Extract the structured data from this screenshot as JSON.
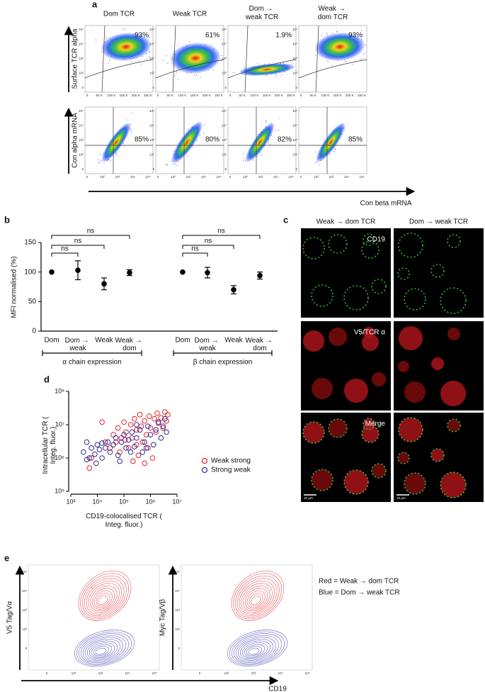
{
  "panel_labels": [
    "a",
    "b",
    "c",
    "d",
    "e"
  ],
  "panel_a": {
    "columns": [
      "Dom TCR",
      "Weak TCR",
      "Dom → weak TCR",
      "Weak → dom TCR"
    ],
    "row_ylabels": [
      "Surface TCR alpha",
      "Con alpha mRNA"
    ],
    "xlabel": "Con beta mRNA",
    "percentages": [
      [
        "93%",
        "61%",
        "1.9%",
        "93%"
      ],
      [
        "85%",
        "80%",
        "82%",
        "85%"
      ]
    ],
    "row_xticks": [
      [
        "0",
        "50 K",
        "100 K",
        "150 K",
        "200 K",
        "250 K"
      ],
      [
        "0",
        "10²",
        "10³",
        "10⁴",
        "10⁵"
      ]
    ],
    "yticks": [
      "0",
      "10²",
      "10³",
      "10⁴",
      "10⁵"
    ]
  },
  "panel_c": {
    "columns": [
      "Weak → dom TCR",
      "Dom → weak TCR"
    ],
    "rows": [
      "CD19",
      "V5/TCR α",
      "Merge"
    ],
    "scale_bar": "10 µm"
  },
  "panel_e": {
    "ylabels": [
      "V5 Tag/Vα",
      "Myc Tag/Vβ"
    ],
    "xlabel": "CD19",
    "legend": [
      "Red = Weak → dom TCR",
      "Blue = Dom → weak TCR"
    ],
    "xticks": [
      "0",
      "10²",
      "10³",
      "10⁴",
      "10⁵"
    ],
    "yticks": [
      "0",
      "10²",
      "10³",
      "10⁴",
      "10⁵"
    ]
  },
  "chart_data": [
    {
      "type": "dot",
      "ylabel": "MFI normalised (%)",
      "ylim": [
        0,
        150
      ],
      "yticks": [
        0,
        50,
        100,
        150
      ],
      "color": "#000000",
      "groups": [
        {
          "name": "α chain expression",
          "categories": [
            "Dom",
            "Dom → weak",
            "Weak",
            "Weak → dom"
          ],
          "values": [
            100,
            103,
            80,
            99
          ],
          "errors": [
            0,
            16,
            10,
            5
          ],
          "significance": [
            "ns",
            "ns",
            "ns"
          ]
        },
        {
          "name": "β chain expression",
          "categories": [
            "Dom",
            "Dom → weak",
            "Weak",
            "Weak → dom"
          ],
          "values": [
            100,
            99,
            70,
            94
          ],
          "errors": [
            0,
            9,
            7,
            6
          ],
          "significance": [
            "ns",
            "ns",
            "ns"
          ]
        }
      ]
    },
    {
      "type": "scatter",
      "xlabel": "CD19-colocalised TCR (Integ. fluor.)",
      "ylabel": "Intracellular TCR (Integ. fluor.)",
      "log": true,
      "xlim": [
        1000.0,
        10000000.0
      ],
      "ylim": [
        100000.0,
        100000000.0
      ],
      "xticks": [
        {
          "value": 1000.0,
          "label": "10³"
        },
        {
          "value": 10000.0,
          "label": "10⁴"
        },
        {
          "value": 100000.0,
          "label": "10⁵"
        },
        {
          "value": 1000000.0,
          "label": "10⁶"
        },
        {
          "value": 10000000.0,
          "label": "10⁷"
        }
      ],
      "yticks": [
        {
          "value": 100000.0,
          "label": "10⁵"
        },
        {
          "value": 1000000.0,
          "label": "10⁶"
        },
        {
          "value": 10000000.0,
          "label": "10⁷"
        },
        {
          "value": 100000000.0,
          "label": "10⁸"
        }
      ],
      "series": [
        {
          "name": "Weak strong",
          "color": "#e8202a",
          "x": [
            5000.0,
            6000.0,
            15000.0,
            20000.0,
            30000.0,
            40000.0,
            50000.0,
            60000.0,
            80000.0,
            100000.0,
            120000.0,
            150000.0,
            180000.0,
            200000.0,
            250000.0,
            300000.0,
            350000.0,
            400000.0,
            450000.0,
            500000.0,
            600000.0,
            700000.0,
            800000.0,
            900000.0,
            1000000.0,
            1200000.0,
            1400000.0,
            1600000.0,
            1800000.0,
            2000000.0,
            2500000.0,
            3000000.0,
            3500000.0,
            4000000.0,
            4500000.0,
            70000.0,
            220000.0,
            600000.0,
            110000.0,
            300000.0
          ],
          "values": [
            500000.0,
            1000000.0,
            12000000.0,
            3000000.0,
            2000000.0,
            5000000.0,
            3000000.0,
            8000000.0,
            4000000.0,
            12000000.0,
            6000000.0,
            2000000.0,
            10000000.0,
            4000000.0,
            15000000.0,
            7000000.0,
            1200000.0,
            20000000.0,
            9000000.0,
            3000000.0,
            13000000.0,
            5000000.0,
            2000000.0,
            18000000.0,
            8000000.0,
            1000000.0,
            15000000.0,
            6000000.0,
            22000000.0,
            11000000.0,
            16000000.0,
            8000000.0,
            24000000.0,
            13000000.0,
            20000000.0,
            1500000.0,
            800000.0,
            700000.0,
            3500000.0,
            2500000.0
          ]
        },
        {
          "name": "Strong weak",
          "color": "#2a2a9a",
          "x": [
            3000.0,
            4000.0,
            5000.0,
            6000.0,
            8000.0,
            10000.0,
            12000.0,
            15000.0,
            20000.0,
            25000.0,
            30000.0,
            40000.0,
            50000.0,
            60000.0,
            80000.0,
            100000.0,
            120000.0,
            150000.0,
            200000.0,
            250000.0,
            300000.0,
            400000.0,
            500000.0,
            600000.0,
            800000.0,
            1000000.0,
            1300000.0,
            1600000.0,
            2000000.0,
            2500000.0,
            3000000.0,
            3500000.0,
            4000000.0,
            9000.0,
            4000.0,
            70000.0,
            180000.0,
            300000.0,
            700000.0,
            15000.0
          ],
          "values": [
            1500000.0,
            3000000.0,
            1000000.0,
            2000000.0,
            1300000.0,
            2500000.0,
            1800000.0,
            1000000.0,
            2000000.0,
            3000000.0,
            1500000.0,
            2500000.0,
            4000000.0,
            1200000.0,
            3000000.0,
            5000000.0,
            2000000.0,
            3500000.0,
            6000000.0,
            2200000.0,
            4000000.0,
            7000000.0,
            1500000.0,
            3000000.0,
            9000000.0,
            5000000.0,
            2500000.0,
            7000000.0,
            12000000.0,
            4000000.0,
            9000000.0,
            15000000.0,
            6000000.0,
            700000.0,
            900000.0,
            800000.0,
            1500000.0,
            10000000.0,
            2000000.0,
            2800000.0
          ]
        }
      ]
    }
  ]
}
